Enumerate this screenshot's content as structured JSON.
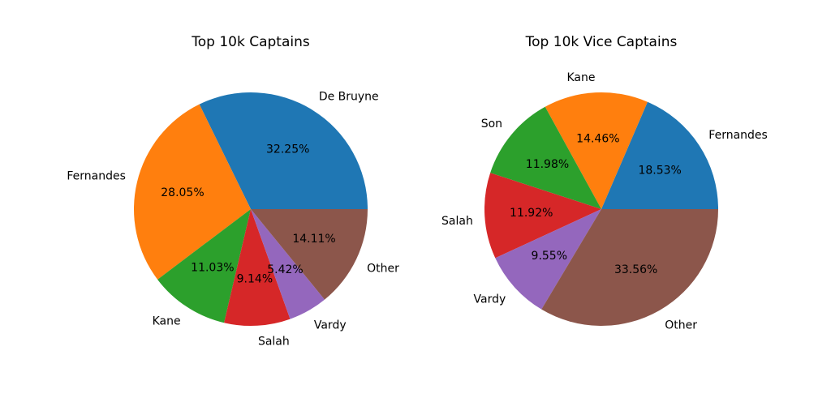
{
  "chart_data": [
    {
      "type": "pie",
      "title": "Top 10k Captains",
      "start_angle_deg": 0,
      "direction": "counterclockwise",
      "slices": [
        {
          "label": "De Bruyne",
          "value": 32.25,
          "pct_label": "32.25%",
          "color": "#1f77b4"
        },
        {
          "label": "Fernandes",
          "value": 28.05,
          "pct_label": "28.05%",
          "color": "#ff7f0e"
        },
        {
          "label": "Kane",
          "value": 11.03,
          "pct_label": "11.03%",
          "color": "#2ca02c"
        },
        {
          "label": "Salah",
          "value": 9.14,
          "pct_label": "9.14%",
          "color": "#d62728"
        },
        {
          "label": "Vardy",
          "value": 5.42,
          "pct_label": "5.42%",
          "color": "#9467bd"
        },
        {
          "label": "Other",
          "value": 14.11,
          "pct_label": "14.11%",
          "color": "#8c564b"
        }
      ]
    },
    {
      "type": "pie",
      "title": "Top 10k Vice Captains",
      "start_angle_deg": 0,
      "direction": "counterclockwise",
      "slices": [
        {
          "label": "Fernandes",
          "value": 18.53,
          "pct_label": "18.53%",
          "color": "#1f77b4"
        },
        {
          "label": "Kane",
          "value": 14.46,
          "pct_label": "14.46%",
          "color": "#ff7f0e"
        },
        {
          "label": "Son",
          "value": 11.98,
          "pct_label": "11.98%",
          "color": "#2ca02c"
        },
        {
          "label": "Salah",
          "value": 11.92,
          "pct_label": "11.92%",
          "color": "#d62728"
        },
        {
          "label": "Vardy",
          "value": 9.55,
          "pct_label": "9.55%",
          "color": "#9467bd"
        },
        {
          "label": "Other",
          "value": 33.56,
          "pct_label": "33.56%",
          "color": "#8c564b"
        }
      ]
    }
  ]
}
